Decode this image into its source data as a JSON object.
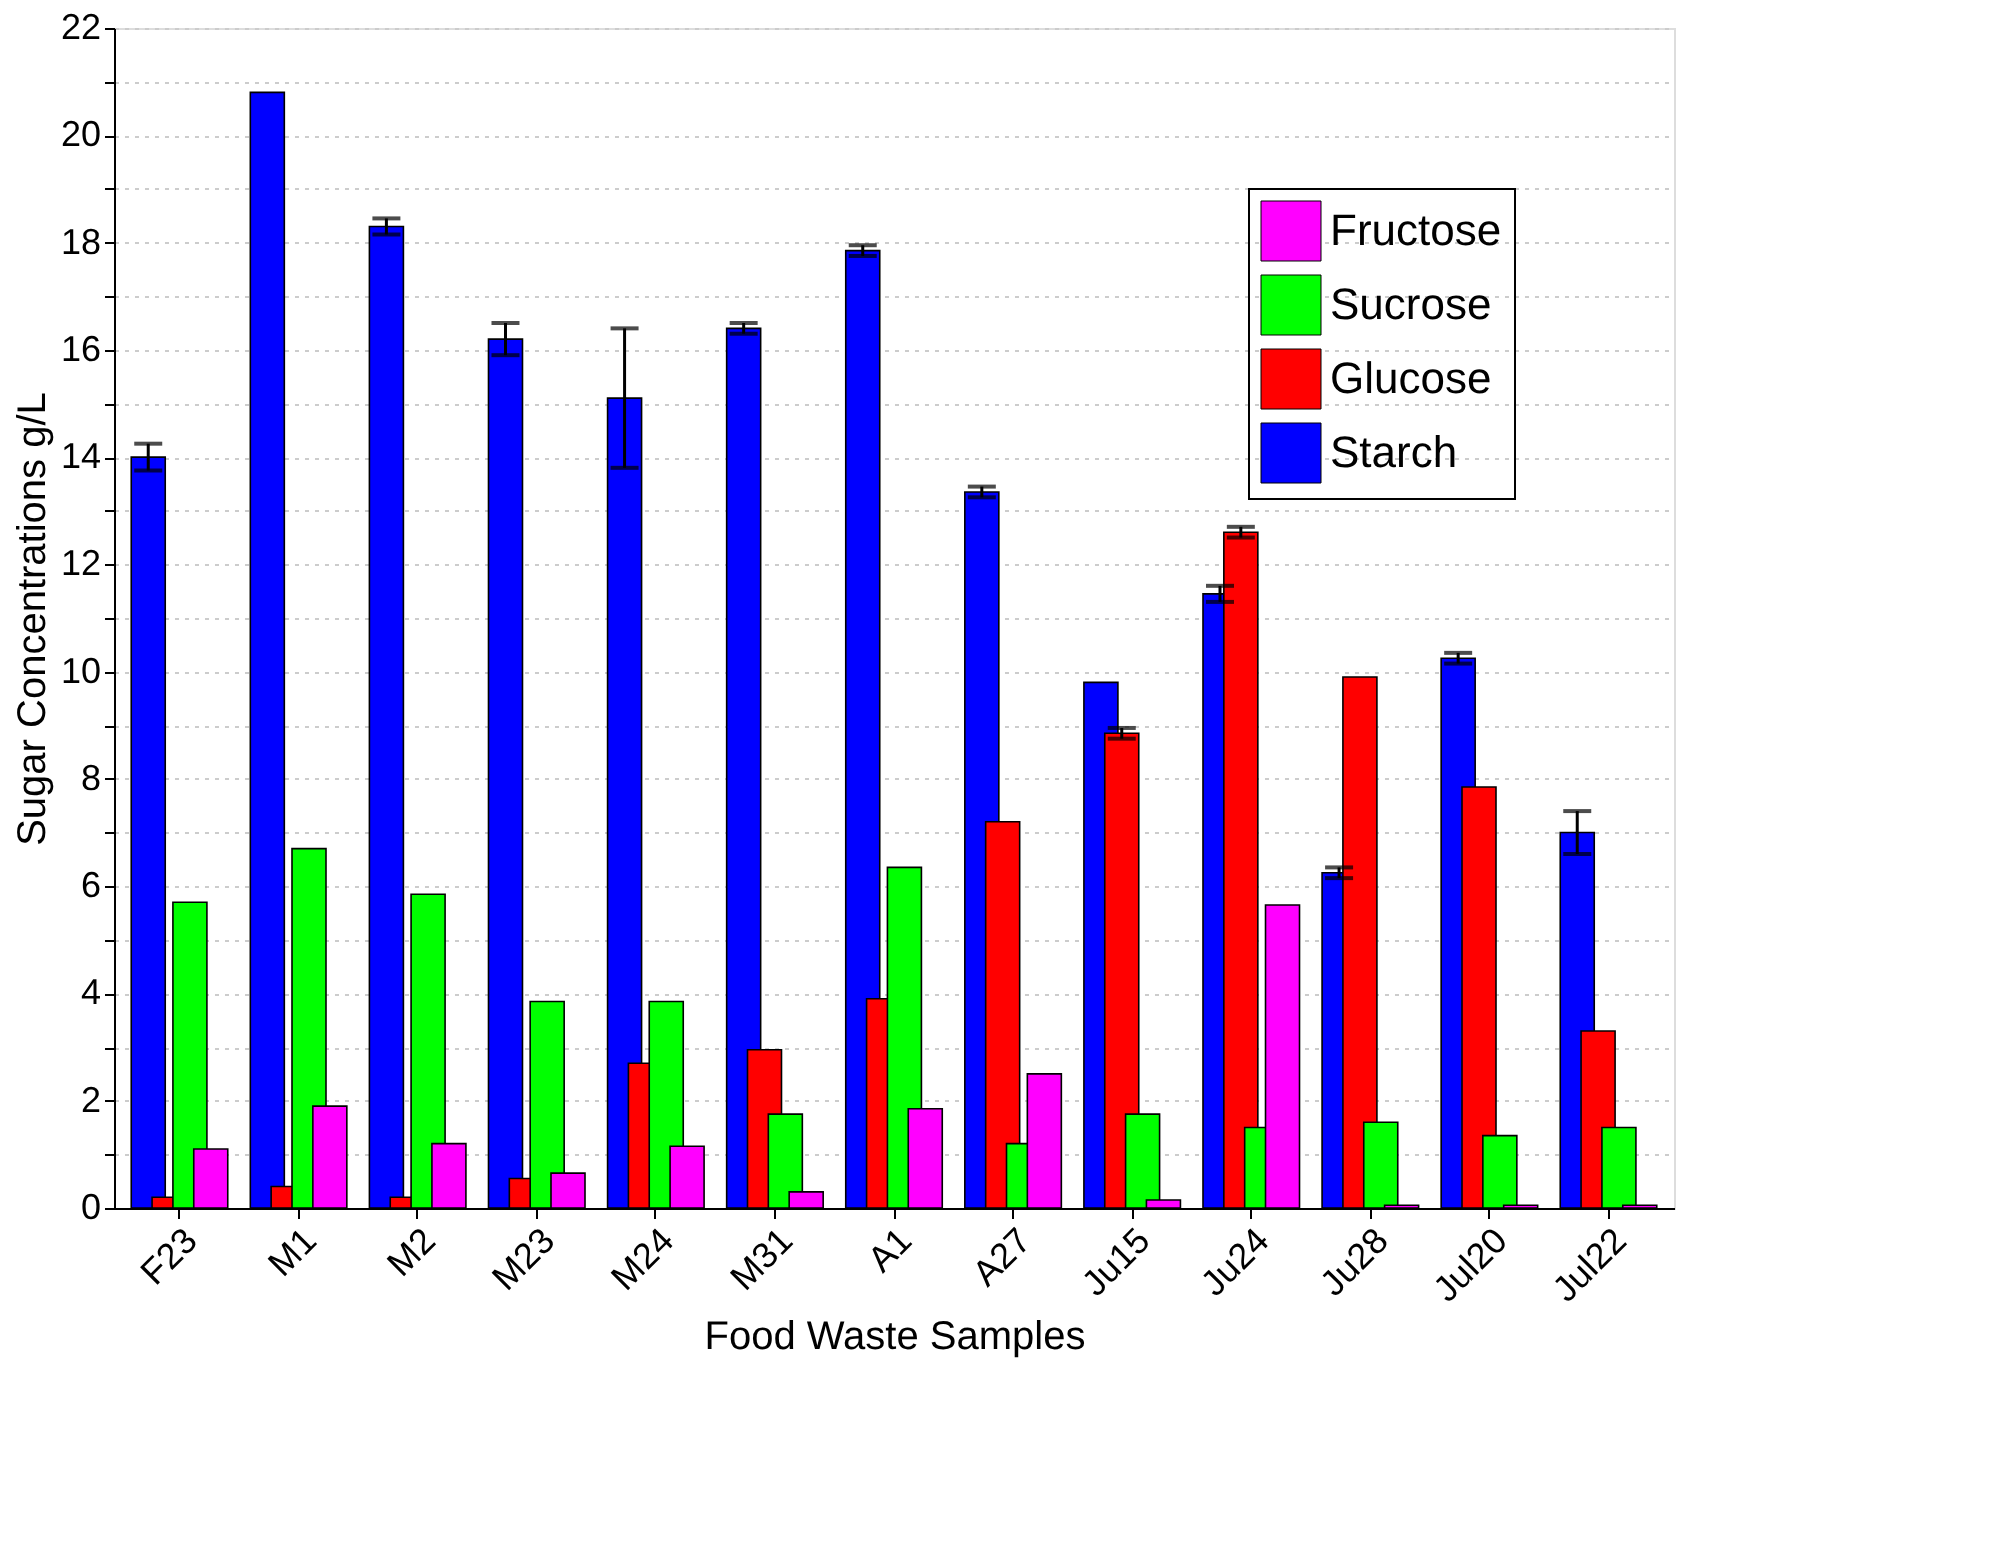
{
  "chart_data": {
    "type": "bar",
    "xlabel": "Food Waste Samples",
    "ylabel": "Sugar Concentrations g/L",
    "categories": [
      "F23",
      "M1",
      "M2",
      "M23",
      "M24",
      "M31",
      "A1",
      "A27",
      "Ju15",
      "Ju24",
      "Ju28",
      "Jul20",
      "Jul22"
    ],
    "series": [
      {
        "name": "Starch",
        "color": "#0000ff",
        "values": [
          14.0,
          20.8,
          18.3,
          16.2,
          15.1,
          16.4,
          17.85,
          13.35,
          9.8,
          11.45,
          6.25,
          10.25,
          7.0
        ],
        "errors": [
          0.25,
          null,
          0.15,
          0.3,
          1.3,
          0.1,
          0.1,
          0.1,
          null,
          0.15,
          0.1,
          0.1,
          0.4
        ]
      },
      {
        "name": "Glucose",
        "color": "#ff0000",
        "values": [
          0.2,
          0.4,
          0.2,
          0.55,
          2.7,
          2.95,
          3.9,
          7.2,
          8.85,
          12.6,
          9.9,
          7.85,
          3.3
        ],
        "errors": [
          null,
          null,
          null,
          null,
          null,
          null,
          null,
          null,
          0.1,
          0.1,
          null,
          null,
          null
        ]
      },
      {
        "name": "Sucrose",
        "color": "#00ff00",
        "values": [
          5.7,
          6.7,
          5.85,
          3.85,
          3.85,
          1.75,
          6.35,
          1.2,
          1.75,
          1.5,
          1.6,
          1.35,
          1.5
        ]
      },
      {
        "name": "Fructose",
        "color": "#ff00ff",
        "values": [
          1.1,
          1.9,
          1.2,
          0.65,
          1.15,
          0.3,
          1.85,
          2.5,
          0.15,
          5.65,
          0.05,
          0.05,
          0.05
        ]
      }
    ],
    "ylim": [
      0,
      22
    ],
    "yticks": [
      0,
      {
        "value": 1,
        "label": null
      },
      2,
      {
        "value": 3,
        "label": null
      },
      4,
      {
        "value": 5,
        "label": null
      },
      6,
      {
        "value": 7,
        "label": null
      },
      8,
      {
        "value": 9,
        "label": null
      },
      10,
      {
        "value": 11,
        "label": null
      },
      12,
      {
        "value": 13,
        "label": null
      },
      14,
      {
        "value": 15,
        "label": null
      },
      16,
      {
        "value": 17,
        "label": null
      },
      18,
      {
        "value": 19,
        "label": null
      },
      20,
      {
        "value": 21,
        "label": null
      },
      22
    ],
    "grid": "y",
    "legend": "top right"
  }
}
